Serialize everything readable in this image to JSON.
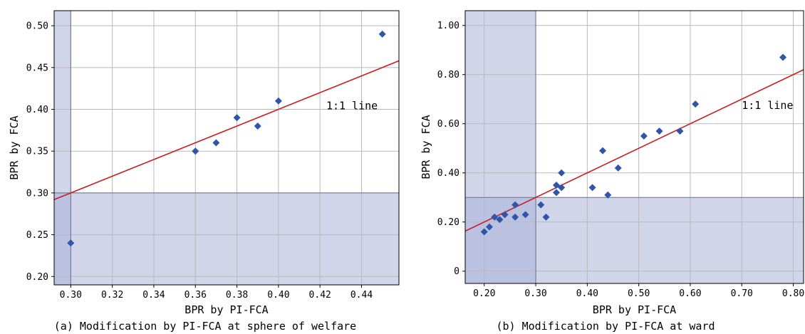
{
  "chart_data": [
    {
      "type": "scatter",
      "xlabel": "BPR by PI-FCA",
      "ylabel": "BPR by FCA",
      "caption": "(a) Modification by PI-FCA at sphere of welfare",
      "xlim": [
        0.292,
        0.458
      ],
      "ylim": [
        0.19,
        0.518
      ],
      "xticks": [
        0.3,
        0.32,
        0.34,
        0.36,
        0.38,
        0.4,
        0.42,
        0.44
      ],
      "xtick_labels": [
        "0.30",
        "0.32",
        "0.34",
        "0.36",
        "0.38",
        "0.40",
        "0.42",
        "0.44"
      ],
      "yticks": [
        0.2,
        0.25,
        0.3,
        0.35,
        0.4,
        0.45,
        0.5
      ],
      "ytick_labels": [
        "0.20",
        "0.25",
        "0.30",
        "0.35",
        "0.40",
        "0.45",
        "0.50"
      ],
      "threshold": 0.3,
      "annotation": "1:1 line",
      "annotation_at": [
        0.423,
        0.4
      ],
      "grid": true,
      "points": [
        {
          "x": 0.3,
          "y": 0.24
        },
        {
          "x": 0.36,
          "y": 0.35
        },
        {
          "x": 0.37,
          "y": 0.36
        },
        {
          "x": 0.38,
          "y": 0.39
        },
        {
          "x": 0.39,
          "y": 0.38
        },
        {
          "x": 0.4,
          "y": 0.41
        },
        {
          "x": 0.45,
          "y": 0.49
        }
      ],
      "colors": {
        "points": "#2e55a8",
        "line": "#c81e1e",
        "shade": "#aab2d8",
        "grid": "#b9b9b9"
      }
    },
    {
      "type": "scatter",
      "xlabel": "BPR by PI-FCA",
      "ylabel": "BPR by FCA",
      "caption": "(b) Modification by PI-FCA at ward",
      "xlim": [
        0.163,
        0.82
      ],
      "ylim": [
        -0.05,
        1.06
      ],
      "xticks": [
        0.2,
        0.3,
        0.4,
        0.5,
        0.6,
        0.7,
        0.8
      ],
      "xtick_labels": [
        "0.20",
        "0.30",
        "0.40",
        "0.50",
        "0.60",
        "0.70",
        "0.80"
      ],
      "yticks": [
        0,
        0.2,
        0.4,
        0.6,
        0.8,
        1.0
      ],
      "ytick_labels": [
        "0",
        "0.20",
        "0.40",
        "0.60",
        "0.80",
        "1.00"
      ],
      "threshold": 0.3,
      "annotation": "1:1 line",
      "annotation_at": [
        0.7,
        0.66
      ],
      "grid": true,
      "points": [
        {
          "x": 0.2,
          "y": 0.16
        },
        {
          "x": 0.21,
          "y": 0.18
        },
        {
          "x": 0.22,
          "y": 0.22
        },
        {
          "x": 0.23,
          "y": 0.21
        },
        {
          "x": 0.24,
          "y": 0.23
        },
        {
          "x": 0.26,
          "y": 0.27
        },
        {
          "x": 0.26,
          "y": 0.22
        },
        {
          "x": 0.28,
          "y": 0.23
        },
        {
          "x": 0.31,
          "y": 0.27
        },
        {
          "x": 0.32,
          "y": 0.22
        },
        {
          "x": 0.34,
          "y": 0.35
        },
        {
          "x": 0.34,
          "y": 0.32
        },
        {
          "x": 0.35,
          "y": 0.4
        },
        {
          "x": 0.35,
          "y": 0.34
        },
        {
          "x": 0.41,
          "y": 0.34
        },
        {
          "x": 0.43,
          "y": 0.49
        },
        {
          "x": 0.44,
          "y": 0.31
        },
        {
          "x": 0.46,
          "y": 0.42
        },
        {
          "x": 0.51,
          "y": 0.55
        },
        {
          "x": 0.54,
          "y": 0.57
        },
        {
          "x": 0.58,
          "y": 0.57
        },
        {
          "x": 0.61,
          "y": 0.68
        },
        {
          "x": 0.78,
          "y": 0.87
        }
      ],
      "colors": {
        "points": "#2e55a8",
        "line": "#c81e1e",
        "shade": "#aab2d8",
        "grid": "#b9b9b9"
      }
    }
  ]
}
